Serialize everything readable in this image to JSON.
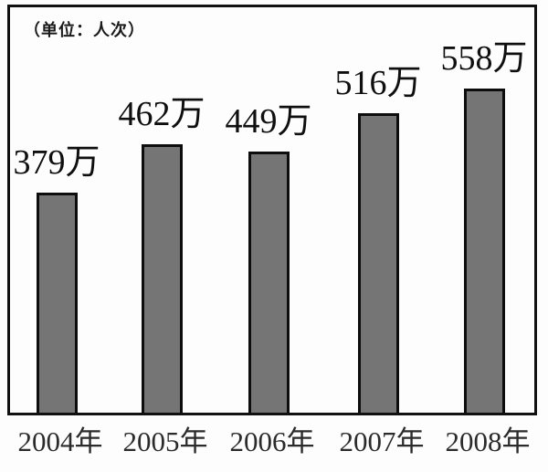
{
  "unit_label": "（单位：人次）",
  "chart_data": {
    "type": "bar",
    "title": "",
    "unit_note": "（单位：人次）",
    "categories": [
      "2004年",
      "2005年",
      "2006年",
      "2007年",
      "2008年"
    ],
    "values": [
      379,
      462,
      449,
      516,
      558
    ],
    "value_labels": [
      "379万",
      "462万",
      "449万",
      "516万",
      "558万"
    ],
    "ylim": [
      0,
      600
    ],
    "grid": false,
    "legend": false,
    "bar_color": "#757575",
    "bar_outline_color": "#0d0d0d",
    "frame_border_color": "#111111",
    "background_color": "#fdfdfd"
  }
}
